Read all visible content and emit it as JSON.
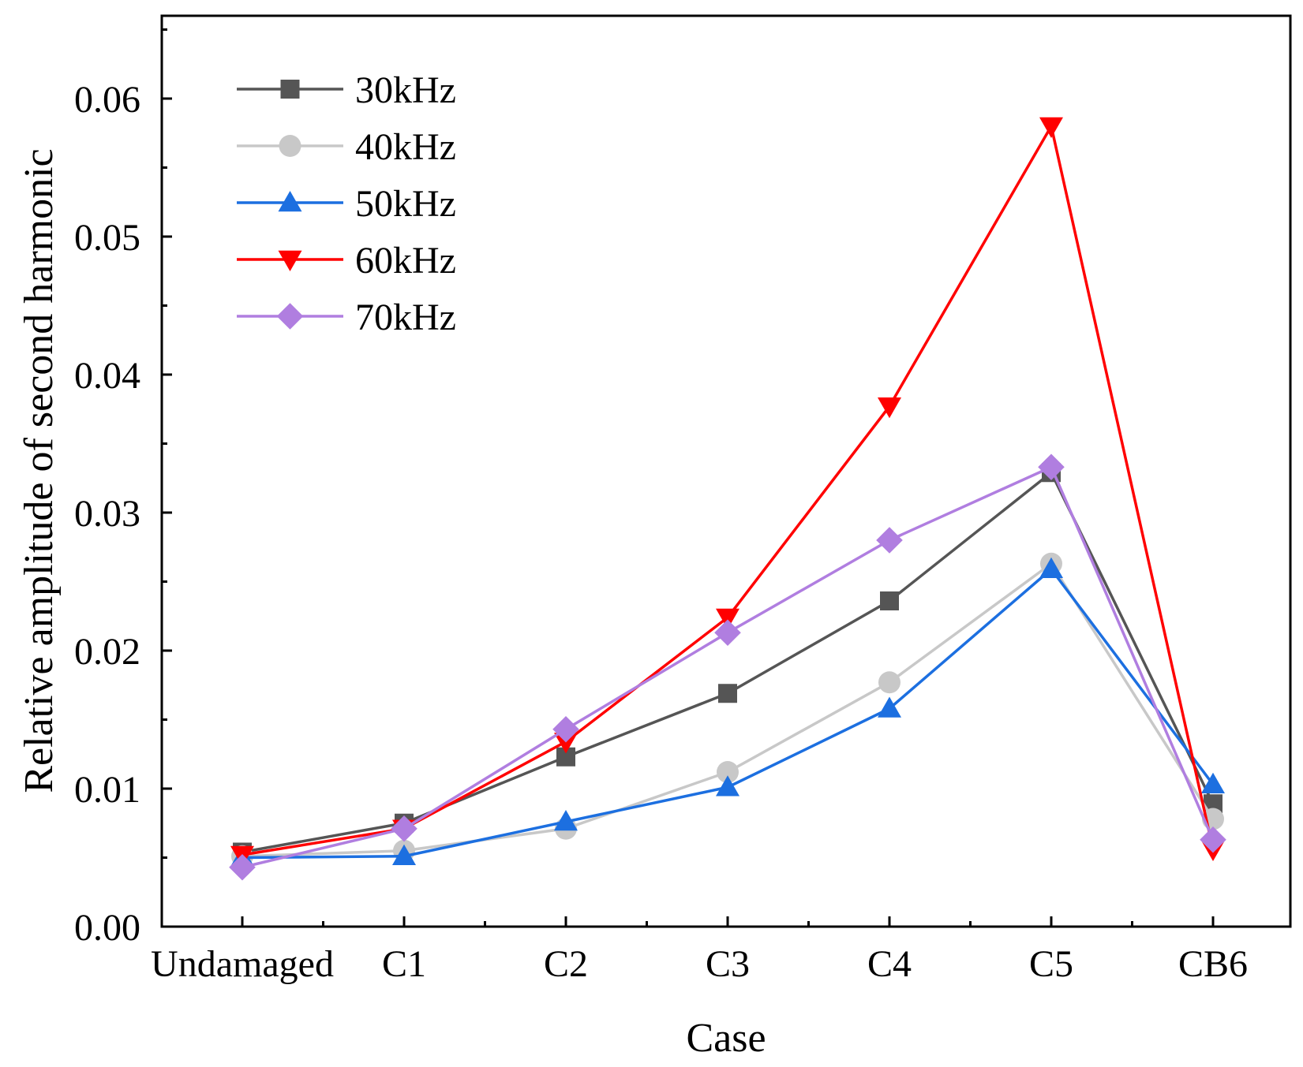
{
  "chart_data": {
    "type": "line",
    "title": "",
    "xlabel": "Case",
    "ylabel": "Relative amplitude of second harmonic",
    "categories": [
      "Undamaged",
      "C1",
      "C2",
      "C3",
      "C4",
      "C5",
      "CB6"
    ],
    "ylim": [
      0,
      0.066
    ],
    "yticks": [
      0.0,
      0.01,
      0.02,
      0.03,
      0.04,
      0.05,
      0.06
    ],
    "ytick_labels": [
      "0.00",
      "0.01",
      "0.02",
      "0.03",
      "0.04",
      "0.05",
      "0.06"
    ],
    "grid": false,
    "legend_position": "top-left",
    "series": [
      {
        "name": "30kHz",
        "color": "#555555",
        "marker": "square",
        "values": [
          0.0054,
          0.0075,
          0.0123,
          0.0169,
          0.0236,
          0.0329,
          0.0089
        ]
      },
      {
        "name": "40kHz",
        "color": "#c8c8c8",
        "marker": "circle",
        "values": [
          0.0051,
          0.0055,
          0.0071,
          0.0112,
          0.0177,
          0.0263,
          0.0078
        ]
      },
      {
        "name": "50kHz",
        "color": "#1c6fe0",
        "marker": "triangle-up",
        "values": [
          0.005,
          0.0051,
          0.0076,
          0.0101,
          0.0158,
          0.0259,
          0.0103
        ]
      },
      {
        "name": "60kHz",
        "color": "#ff0000",
        "marker": "triangle-down",
        "values": [
          0.0052,
          0.0071,
          0.0134,
          0.0224,
          0.0377,
          0.058,
          0.0056
        ]
      },
      {
        "name": "70kHz",
        "color": "#b07ee0",
        "marker": "diamond",
        "values": [
          0.0043,
          0.0071,
          0.0143,
          0.0213,
          0.028,
          0.0333,
          0.0063
        ]
      }
    ]
  }
}
